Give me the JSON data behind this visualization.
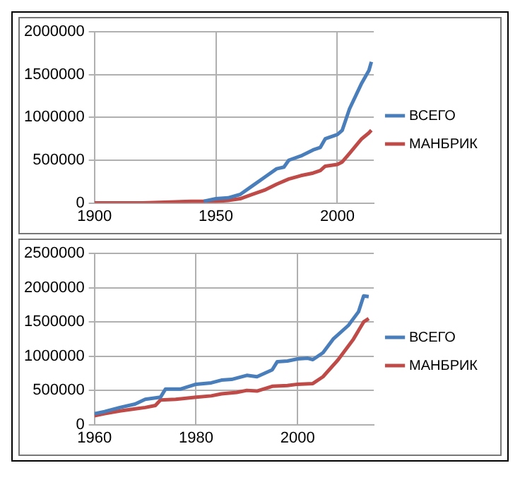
{
  "chart_data": [
    {
      "type": "line",
      "xlim": [
        1900,
        2015
      ],
      "xticks": [
        1900,
        1950,
        2000
      ],
      "ylim": [
        0,
        2000000
      ],
      "yticks": [
        0,
        500000,
        1000000,
        1500000,
        2000000
      ],
      "grid": true,
      "legend": "right",
      "marker": "none",
      "series": [
        {
          "name": "ВСЕГО",
          "color": "#4a7ebb",
          "x": [
            1945,
            1950,
            1955,
            1960,
            1965,
            1970,
            1975,
            1978,
            1980,
            1985,
            1990,
            1993,
            1995,
            2000,
            2002,
            2005,
            2010,
            2013,
            2014
          ],
          "values": [
            20000,
            50000,
            60000,
            100000,
            200000,
            300000,
            400000,
            420000,
            500000,
            550000,
            620000,
            650000,
            750000,
            800000,
            850000,
            1100000,
            1400000,
            1550000,
            1650000
          ]
        },
        {
          "name": "МАНБРИК",
          "color": "#be4b48",
          "x": [
            1900,
            1920,
            1940,
            1950,
            1955,
            1960,
            1965,
            1970,
            1975,
            1980,
            1985,
            1990,
            1993,
            1995,
            2000,
            2002,
            2005,
            2010,
            2013,
            2014
          ],
          "values": [
            0,
            0,
            20000,
            20000,
            30000,
            50000,
            100000,
            150000,
            220000,
            280000,
            320000,
            350000,
            380000,
            430000,
            450000,
            480000,
            580000,
            750000,
            820000,
            850000
          ]
        }
      ]
    },
    {
      "type": "line",
      "xlim": [
        1960,
        2015
      ],
      "xticks": [
        1960,
        1980,
        2000
      ],
      "ylim": [
        0,
        2500000
      ],
      "yticks": [
        0,
        500000,
        1000000,
        1500000,
        2000000,
        2500000
      ],
      "grid": true,
      "legend": "right",
      "marker": "none",
      "series": [
        {
          "name": "ВСЕГО",
          "color": "#4a7ebb",
          "x": [
            1960,
            1962,
            1965,
            1968,
            1970,
            1972,
            1973,
            1974,
            1977,
            1980,
            1983,
            1985,
            1987,
            1990,
            1992,
            1995,
            1996,
            1998,
            2000,
            2002,
            2003,
            2005,
            2007,
            2010,
            2012,
            2013,
            2014
          ],
          "values": [
            160000,
            190000,
            250000,
            300000,
            370000,
            390000,
            400000,
            520000,
            520000,
            590000,
            610000,
            650000,
            660000,
            720000,
            700000,
            800000,
            920000,
            930000,
            960000,
            970000,
            950000,
            1050000,
            1250000,
            1450000,
            1650000,
            1880000,
            1870000
          ]
        },
        {
          "name": "МАНБРИК",
          "color": "#be4b48",
          "x": [
            1960,
            1962,
            1965,
            1968,
            1970,
            1972,
            1973,
            1976,
            1980,
            1983,
            1985,
            1988,
            1990,
            1992,
            1995,
            1998,
            2000,
            2003,
            2005,
            2008,
            2011,
            2013,
            2014
          ],
          "values": [
            130000,
            160000,
            200000,
            230000,
            250000,
            280000,
            360000,
            370000,
            400000,
            420000,
            450000,
            470000,
            500000,
            490000,
            560000,
            570000,
            590000,
            600000,
            700000,
            950000,
            1250000,
            1500000,
            1550000
          ]
        }
      ]
    }
  ]
}
